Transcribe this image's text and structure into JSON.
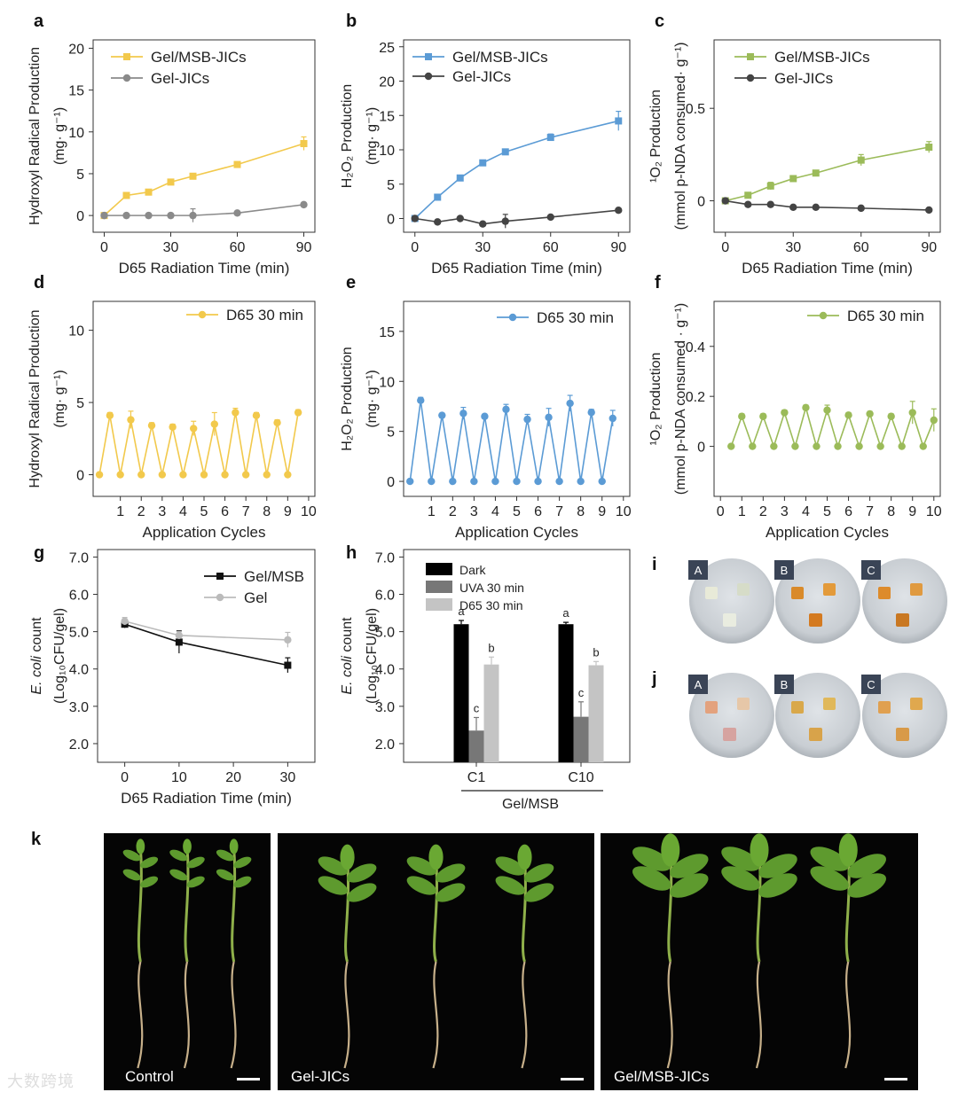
{
  "panels": {
    "a": {
      "letter": "a",
      "chart_data": {
        "type": "line",
        "xlabel": "D65 Radiation Time (min)",
        "ylabel": [
          "Hydroxyl Radical Production",
          "(mg· g⁻¹)"
        ],
        "xlim": [
          -5,
          95
        ],
        "ylim": [
          -2,
          21
        ],
        "xticks": [
          0,
          30,
          60,
          90
        ],
        "yticks": [
          0,
          5,
          10,
          15,
          20
        ],
        "x": [
          0,
          10,
          20,
          30,
          40,
          60,
          90
        ],
        "series": [
          {
            "name": "Gel/MSB-JICs",
            "color": "#f2c94c",
            "marker": "square",
            "values": [
              0,
              2.4,
              2.8,
              4.0,
              4.7,
              6.1,
              8.6
            ],
            "err": [
              0.1,
              0.2,
              0.2,
              0.3,
              0.2,
              0.2,
              0.8
            ]
          },
          {
            "name": "Gel-JICs",
            "color": "#8a8a8a",
            "marker": "circle",
            "values": [
              0,
              0,
              0,
              0,
              0,
              0.3,
              1.3
            ],
            "err": [
              0.1,
              0.1,
              0.1,
              0.1,
              0.8,
              0.1,
              0.2
            ]
          }
        ]
      }
    },
    "b": {
      "letter": "b",
      "chart_data": {
        "type": "line",
        "xlabel": "D65 Radiation Time (min)",
        "ylabel": [
          "H₂O₂ Production",
          "(mg· g⁻¹)"
        ],
        "xlim": [
          -5,
          95
        ],
        "ylim": [
          -2,
          26
        ],
        "xticks": [
          0,
          30,
          60,
          90
        ],
        "yticks": [
          0,
          5,
          10,
          15,
          20,
          25
        ],
        "x": [
          0,
          10,
          20,
          30,
          40,
          60,
          90
        ],
        "series": [
          {
            "name": "Gel/MSB-JICs",
            "color": "#5b9bd5",
            "marker": "square",
            "values": [
              0,
              3.1,
              5.9,
              8.1,
              9.7,
              11.8,
              14.2
            ],
            "err": [
              0.1,
              0.2,
              0.4,
              0.3,
              0.2,
              0.5,
              1.4
            ]
          },
          {
            "name": "Gel-JICs",
            "color": "#444444",
            "marker": "circle",
            "values": [
              0,
              -0.5,
              0,
              -0.8,
              -0.4,
              0.2,
              1.2
            ],
            "err": [
              0.1,
              0.2,
              0.2,
              0.3,
              1.0,
              0.2,
              0.2
            ]
          }
        ]
      }
    },
    "c": {
      "letter": "c",
      "chart_data": {
        "type": "line",
        "xlabel": "D65 Radiation Time (min)",
        "ylabel": [
          "¹O₂ Production",
          "(mmol p-NDA consumed· g⁻¹)"
        ],
        "xlim": [
          -5,
          95
        ],
        "ylim": [
          -0.17,
          0.87
        ],
        "xticks": [
          0,
          30,
          60,
          90
        ],
        "yticks": [
          0.0,
          0.5
        ],
        "x": [
          0,
          10,
          20,
          30,
          40,
          60,
          90
        ],
        "series": [
          {
            "name": "Gel/MSB-JICs",
            "color": "#9bbb59",
            "marker": "square",
            "values": [
              0,
              0.03,
              0.08,
              0.12,
              0.15,
              0.22,
              0.29
            ],
            "err": [
              0.01,
              0.01,
              0.02,
              0.01,
              0.01,
              0.03,
              0.03
            ]
          },
          {
            "name": "Gel-JICs",
            "color": "#444444",
            "marker": "circle",
            "values": [
              0,
              -0.02,
              -0.02,
              -0.035,
              -0.035,
              -0.04,
              -0.05
            ],
            "err": [
              0.005,
              0.005,
              0.005,
              0.005,
              0.005,
              0.005,
              0.005
            ]
          }
        ]
      }
    },
    "d": {
      "letter": "d",
      "chart_data": {
        "type": "line",
        "xlabel": "Application Cycles",
        "ylabel": [
          "Hydroxyl Radical Production",
          "(mg· g⁻¹)"
        ],
        "xlim": [
          -0.3,
          10.3
        ],
        "ylim": [
          -1.5,
          12
        ],
        "xticks": [
          1,
          2,
          3,
          4,
          5,
          6,
          7,
          8,
          9,
          10
        ],
        "yticks": [
          0,
          5,
          10
        ],
        "x": [
          0,
          0.5,
          1,
          1.5,
          2,
          2.5,
          3,
          3.5,
          4,
          4.5,
          5,
          5.5,
          6,
          6.5,
          7,
          7.5,
          8,
          8.5,
          9,
          9.5,
          10
        ],
        "series": [
          {
            "name": "D65 30 min",
            "color": "#f2c94c",
            "marker": "circle",
            "values": [
              0,
              4.1,
              0,
              3.8,
              0,
              3.4,
              0,
              3.3,
              0,
              3.2,
              0,
              3.5,
              0,
              4.3,
              0,
              4.1,
              0,
              3.6,
              0,
              4.3,
              null
            ],
            "err": [
              0,
              0.2,
              0,
              0.6,
              0,
              0.2,
              0,
              0.2,
              0,
              0.5,
              0,
              0.8,
              0,
              0.3,
              0,
              0.2,
              0,
              0.2,
              0,
              0.2,
              0
            ]
          }
        ]
      }
    },
    "e": {
      "letter": "e",
      "chart_data": {
        "type": "line",
        "xlabel": "Application Cycles",
        "ylabel": [
          "H₂O₂ Production",
          "(mg· g⁻¹)"
        ],
        "xlim": [
          -0.3,
          10.3
        ],
        "ylim": [
          -1.5,
          18
        ],
        "xticks": [
          1,
          2,
          3,
          4,
          5,
          6,
          7,
          8,
          9,
          10
        ],
        "yticks": [
          0,
          5,
          10,
          15
        ],
        "x": [
          0,
          0.5,
          1,
          1.5,
          2,
          2.5,
          3,
          3.5,
          4,
          4.5,
          5,
          5.5,
          6,
          6.5,
          7,
          7.5,
          8,
          8.5,
          9,
          9.5,
          10
        ],
        "series": [
          {
            "name": "D65 30 min",
            "color": "#5b9bd5",
            "marker": "circle",
            "values": [
              0,
              8.1,
              0,
              6.6,
              0,
              6.8,
              0,
              6.5,
              0,
              7.2,
              0,
              6.2,
              0,
              6.4,
              0,
              7.8,
              0,
              6.9,
              0,
              6.3,
              null
            ],
            "err": [
              0,
              0.3,
              0,
              0.2,
              0,
              0.6,
              0,
              0.2,
              0,
              0.5,
              0,
              0.5,
              0,
              0.9,
              0,
              0.8,
              0,
              0.3,
              0,
              0.8,
              0
            ]
          }
        ]
      }
    },
    "f": {
      "letter": "f",
      "chart_data": {
        "type": "line",
        "xlabel": "Application Cycles",
        "ylabel": [
          "¹O₂ Production",
          "(mmol p-NDA consumed · g⁻¹)"
        ],
        "xlim": [
          -0.3,
          10.3
        ],
        "ylim": [
          -0.2,
          0.58
        ],
        "xticks": [
          0,
          1,
          2,
          3,
          4,
          5,
          6,
          7,
          8,
          9,
          10
        ],
        "yticks": [
          0.0,
          0.2,
          0.4
        ],
        "x": [
          0.5,
          1,
          1.5,
          2,
          2.5,
          3,
          3.5,
          4,
          4.5,
          5,
          5.5,
          6,
          6.5,
          7,
          7.5,
          8,
          8.5,
          9,
          9.5,
          10
        ],
        "series": [
          {
            "name": "D65 30 min",
            "color": "#9bbb59",
            "marker": "circle",
            "values": [
              0,
              0.12,
              0,
              0.12,
              0,
              0.135,
              0,
              0.155,
              0,
              0.145,
              0,
              0.125,
              0,
              0.13,
              0,
              0.12,
              0,
              0.135,
              0,
              0.105
            ],
            "err": [
              0,
              0.01,
              0,
              0.01,
              0,
              0.01,
              0,
              0.01,
              0,
              0.02,
              0,
              0.01,
              0,
              0.01,
              0,
              0.01,
              0,
              0.045,
              0,
              0.045
            ]
          }
        ]
      }
    },
    "g": {
      "letter": "g",
      "chart_data": {
        "type": "line",
        "xlabel": "D65 Radiation Time (min)",
        "ylabel_italic": "E. coli",
        "ylabel": [
          " count",
          "(Log₁₀CFU/gel)"
        ],
        "xlim": [
          -5,
          35
        ],
        "ylim": [
          1.5,
          7.2
        ],
        "xticks": [
          0,
          10,
          20,
          30
        ],
        "yticks": [
          "2.0",
          "3.0",
          "4.0",
          "5.0",
          "6.0",
          "7.0"
        ],
        "x": [
          0,
          10,
          30
        ],
        "series": [
          {
            "name": "Gel/MSB",
            "color": "#111111",
            "marker": "square",
            "values": [
              5.2,
              4.72,
              4.1
            ],
            "err": [
              0.1,
              0.3,
              0.2
            ]
          },
          {
            "name": "Gel",
            "color": "#bbbbbb",
            "marker": "circle",
            "values": [
              5.28,
              4.9,
              4.78
            ],
            "err": [
              0.1,
              0.1,
              0.2
            ]
          }
        ]
      }
    },
    "h": {
      "letter": "h",
      "chart_data": {
        "type": "bar",
        "categories": [
          "C1",
          "C10"
        ],
        "group_label": "Gel/MSB",
        "ylabel_italic": "E. coli",
        "ylabel": [
          " count",
          "(Log₁₀CFU/gel)"
        ],
        "ylim": [
          1.5,
          7.2
        ],
        "yticks": [
          "2.0",
          "3.0",
          "4.0",
          "5.0",
          "6.0",
          "7.0"
        ],
        "series": [
          {
            "name": "Dark",
            "color": "#000000",
            "values": [
              5.2,
              5.2
            ],
            "err": [
              0.1,
              0.05
            ],
            "letters": [
              "a",
              "a"
            ]
          },
          {
            "name": "UVA 30 min",
            "color": "#777777",
            "values": [
              2.35,
              2.72
            ],
            "err": [
              0.35,
              0.4
            ],
            "letters": [
              "c",
              "c"
            ]
          },
          {
            "name": "D65 30 min",
            "color": "#c4c4c4",
            "values": [
              4.12,
              4.1
            ],
            "err": [
              0.2,
              0.1
            ],
            "letters": [
              "b",
              "b"
            ]
          }
        ]
      }
    }
  },
  "photos": {
    "i": {
      "letter": "i",
      "dishes": [
        "A",
        "B",
        "C"
      ]
    },
    "j": {
      "letter": "j",
      "dishes": [
        "A",
        "B",
        "C"
      ]
    },
    "k": {
      "letter": "k",
      "labels": [
        "Control",
        "Gel-JICs",
        "Gel/MSB-JICs"
      ]
    }
  },
  "watermark": "大数跨境"
}
